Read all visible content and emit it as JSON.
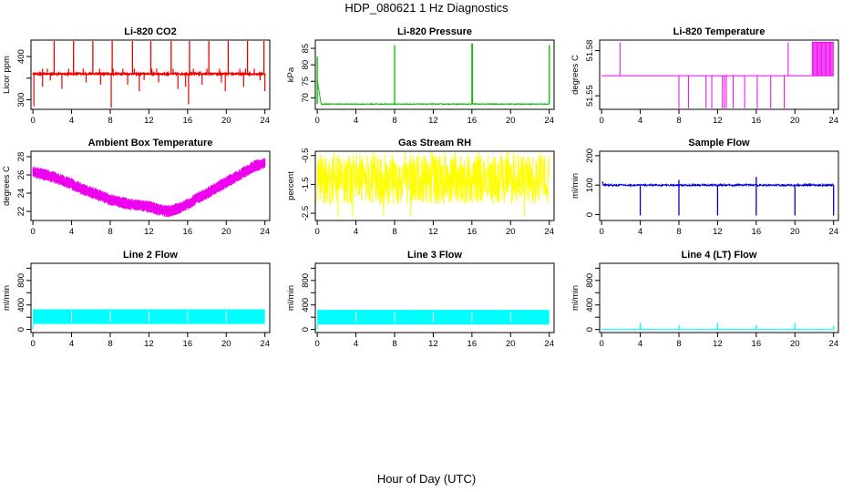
{
  "figure": {
    "title": "HDP_080621  1 Hz Diagnostics",
    "xlabel": "Hour of Day (UTC)"
  },
  "colors": {
    "co2": "#ee0000",
    "pressure": "#00c000",
    "temperature": "#ee00ee",
    "box_temp": "#ee00ee",
    "rh": "#ffff00",
    "sample_flow": "#0000cc",
    "line2": "#00ffff",
    "line3": "#00ffff",
    "line4": "#00ffff"
  },
  "chart_data": [
    {
      "id": "co2",
      "type": "line",
      "title": "Li-820 CO2",
      "ylabel": "Licor ppm",
      "x_ticks": [
        0,
        4,
        8,
        12,
        16,
        20,
        24
      ],
      "x_lim": [
        -0.2,
        24.5
      ],
      "y_ticks": [
        300,
        350,
        400
      ],
      "y_tick_labels": [
        "300",
        "",
        "400"
      ],
      "y_lim": [
        278,
        438
      ],
      "baseline": 360,
      "noise": 2,
      "spikes_up_x": [
        2.2,
        4.2,
        6.2,
        8.2,
        10.3,
        12.2,
        14.3,
        16.2,
        18.2,
        20.2,
        22.2,
        23.9
      ],
      "spike_up_top": 436,
      "spikes_down_x": [
        0.1,
        1.0,
        1.8,
        3.0,
        5.5,
        7.0,
        8.1,
        9.8,
        11.0,
        11.5,
        13.0,
        15.0,
        15.8,
        16.1,
        17.5,
        19.5,
        19.9,
        21.8,
        23.5,
        24.0
      ],
      "spikes_down_bottom": [
        285,
        330,
        345,
        325,
        340,
        335,
        282,
        335,
        320,
        345,
        340,
        325,
        330,
        290,
        335,
        340,
        320,
        330,
        345,
        320
      ],
      "bumps_x": [
        1.0,
        1.5,
        3.7,
        5.2,
        6.9,
        8.3,
        9.3,
        10.5,
        12.3,
        12.8,
        14.5,
        16.6,
        18.0,
        19.3,
        21.4,
        22.0,
        22.9
      ],
      "bump_height": 372
    },
    {
      "id": "pressure",
      "type": "line",
      "title": "Li-820 Pressure",
      "ylabel": "kPa",
      "x_ticks": [
        0,
        4,
        8,
        12,
        16,
        20,
        24
      ],
      "x_lim": [
        -0.2,
        24.5
      ],
      "y_ticks": [
        70,
        75,
        80,
        85
      ],
      "y_tick_labels": [
        "70",
        "75",
        "80",
        "85"
      ],
      "y_lim": [
        66.5,
        87.5
      ],
      "baseline": 68.1,
      "noise": 0.12,
      "spikes_up_x": [
        0.0,
        8.0,
        16.0,
        16.05,
        24.0
      ],
      "spikes_up_top": [
        82.5,
        86,
        86.5,
        86.5,
        86
      ],
      "early_settle": true
    },
    {
      "id": "temperature",
      "type": "line",
      "title": "Li-820 Temperature",
      "ylabel": "degrees C",
      "x_ticks": [
        0,
        4,
        8,
        12,
        16,
        20,
        24
      ],
      "x_lim": [
        -0.2,
        24.5
      ],
      "y_ticks": [
        51.55,
        51.58
      ],
      "y_tick_labels": [
        "51.55",
        "51.58"
      ],
      "y_lim": [
        51.541,
        51.587
      ],
      "baseline": 51.5633,
      "level_up": 51.5856,
      "level_down": 51.5417,
      "pulses_up_x": [
        1.9,
        19.3
      ],
      "pulses_down_x": [
        8.0,
        9.0,
        10.8,
        11.4,
        12.5,
        12.7,
        12.9,
        13.6,
        14.8,
        16.1,
        17.5,
        18.9
      ],
      "dense_up_from": 21.8,
      "dense_up_to": 24.0
    },
    {
      "id": "box_temp",
      "type": "band",
      "title": "Ambient Box Temperature",
      "ylabel": "degrees C",
      "x_ticks": [
        0,
        4,
        8,
        12,
        16,
        20,
        24
      ],
      "x_lim": [
        -0.2,
        24.5
      ],
      "y_ticks": [
        22,
        24,
        26,
        28
      ],
      "y_tick_labels": [
        "22",
        "24",
        "26",
        "28"
      ],
      "y_lim": [
        21.0,
        28.6
      ],
      "center_x": [
        0,
        1,
        2,
        3,
        4,
        5,
        6,
        7,
        8,
        9,
        10,
        11,
        12,
        13,
        14,
        15,
        16,
        17,
        18,
        19,
        20,
        21,
        22,
        23,
        24
      ],
      "center_y": [
        26.3,
        26.1,
        25.8,
        25.4,
        25.0,
        24.5,
        24.1,
        23.7,
        23.3,
        23.0,
        22.8,
        22.7,
        22.5,
        22.2,
        22.0,
        22.3,
        22.8,
        23.4,
        24.0,
        24.6,
        25.2,
        25.8,
        26.4,
        27.0,
        27.3
      ],
      "half_width": 0.55
    },
    {
      "id": "rh",
      "type": "noise",
      "title": "Gas Stream RH",
      "ylabel": "percent",
      "x_ticks": [
        0,
        4,
        8,
        12,
        16,
        20,
        24
      ],
      "x_lim": [
        -0.2,
        24.5
      ],
      "y_ticks": [
        -2.5,
        -1.5,
        -0.5
      ],
      "y_tick_labels": [
        "-2.5",
        "-1.5",
        "-0.5"
      ],
      "y_lim": [
        -2.75,
        -0.35
      ],
      "lo": -2.2,
      "hi": -0.45,
      "outlier_lo": -2.62,
      "outlier_hi": -0.38
    },
    {
      "id": "sample_flow",
      "type": "line",
      "title": "Sample Flow",
      "ylabel": "ml/min",
      "x_ticks": [
        0,
        4,
        8,
        12,
        16,
        20,
        24
      ],
      "x_lim": [
        -0.2,
        24.5
      ],
      "y_ticks": [
        0,
        100,
        200
      ],
      "y_tick_labels": [
        "0",
        "100",
        "200"
      ],
      "y_lim": [
        -20,
        215
      ],
      "baseline": 100,
      "noise": 3,
      "start_value": 110,
      "dips_x": [
        4.0,
        8.0,
        12.0,
        16.0,
        20.0,
        24.0
      ],
      "dip_bottom": -3,
      "peaks_x": [
        8.0,
        16.0
      ],
      "peak_top": [
        118,
        128
      ]
    },
    {
      "id": "line2",
      "type": "band_flat",
      "title": "Line 2 Flow",
      "ylabel": "ml/min",
      "x_ticks": [
        0,
        4,
        8,
        12,
        16,
        20,
        24
      ],
      "x_lim": [
        -0.2,
        24.5
      ],
      "y_ticks": [
        0,
        200,
        400,
        600,
        800,
        1000
      ],
      "y_tick_labels": [
        "0",
        "400",
        "800"
      ],
      "y_lim": [
        -50,
        1080
      ],
      "band_lo": 90,
      "band_hi": 330,
      "band_from": 0.0,
      "band_to": 24.0,
      "gaps_x": [
        4.0,
        8.0,
        12.0,
        16.0,
        20.0
      ]
    },
    {
      "id": "line3",
      "type": "band_flat",
      "title": "Line 3 Flow",
      "ylabel": "ml/min",
      "x_ticks": [
        0,
        4,
        8,
        12,
        16,
        20,
        24
      ],
      "x_lim": [
        -0.2,
        24.5
      ],
      "y_ticks": [
        0,
        200,
        400,
        600,
        800,
        1000
      ],
      "y_tick_labels": [
        "0",
        "400",
        "800"
      ],
      "y_lim": [
        -50,
        1080
      ],
      "band_lo": 80,
      "band_hi": 320,
      "band_from": 0.0,
      "band_to": 24.0,
      "gaps_x": [
        4.0,
        8.0,
        12.0,
        16.0,
        20.0
      ]
    },
    {
      "id": "line4",
      "type": "line",
      "title": "Line 4 (LT) Flow",
      "ylabel": "ml/min",
      "x_ticks": [
        0,
        4,
        8,
        12,
        16,
        20,
        24
      ],
      "x_lim": [
        -0.2,
        24.5
      ],
      "y_ticks": [
        0,
        200,
        400,
        600,
        800,
        1000
      ],
      "y_tick_labels": [
        "0",
        "400",
        "800"
      ],
      "y_lim": [
        -50,
        1080
      ],
      "baseline": 0,
      "noise": 2,
      "spikes_up_x": [
        4.0,
        8.0,
        12.0,
        16.0,
        20.0,
        24.0
      ],
      "spikes_up_top": [
        110,
        70,
        110,
        70,
        110,
        60
      ]
    }
  ]
}
